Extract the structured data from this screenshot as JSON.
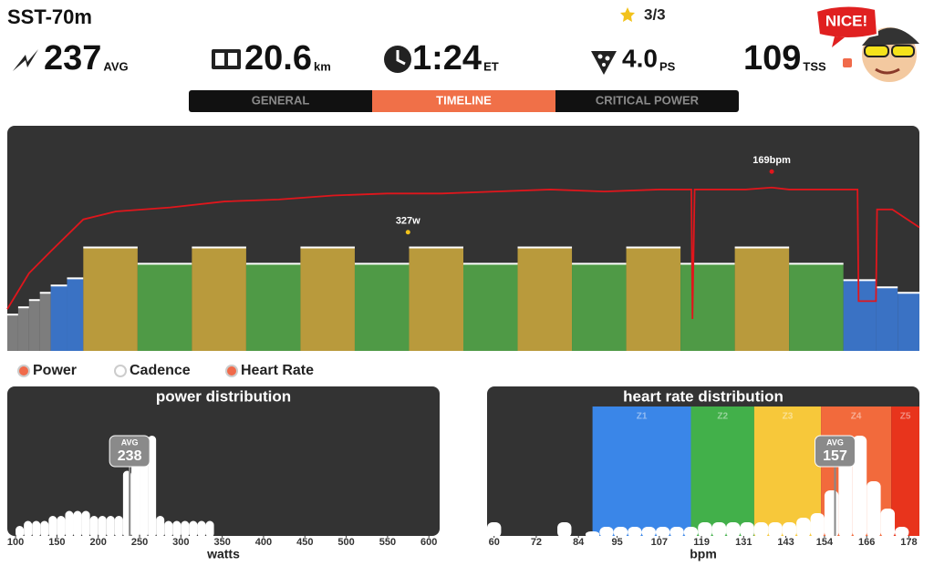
{
  "header": {
    "title": "SST-70m",
    "stars": "3/3",
    "badge": "NICE!",
    "stats": [
      {
        "value": "237",
        "unit": "AVG"
      },
      {
        "value": "20.6",
        "unit": "km"
      },
      {
        "value": "1:24",
        "unit": "ET"
      },
      {
        "value": "4.0",
        "unit": "PS"
      },
      {
        "value": "109",
        "unit": "TSS"
      }
    ]
  },
  "tabs": [
    "GENERAL",
    "TIMELINE",
    "CRITICAL POWER"
  ],
  "active_tab": 1,
  "chart_data": [
    {
      "type": "timeline",
      "xlim": [
        0,
        84
      ],
      "ylim": [
        0,
        620
      ],
      "y2lim": [
        79,
        192
      ],
      "segments": [
        {
          "start": 0,
          "end": 1,
          "power": 100,
          "color": "#7d7d7d"
        },
        {
          "start": 1,
          "end": 2,
          "power": 120,
          "color": "#7d7d7d"
        },
        {
          "start": 2,
          "end": 3,
          "power": 140,
          "color": "#7d7d7d"
        },
        {
          "start": 3,
          "end": 4,
          "power": 160,
          "color": "#7d7d7d"
        },
        {
          "start": 4,
          "end": 5.5,
          "power": 180,
          "color": "#3a72c4"
        },
        {
          "start": 5.5,
          "end": 7,
          "power": 200,
          "color": "#3a72c4"
        },
        {
          "start": 7,
          "end": 12,
          "power": 285,
          "color": "#b99a3c"
        },
        {
          "start": 12,
          "end": 17,
          "power": 240,
          "color": "#4f9a46"
        },
        {
          "start": 17,
          "end": 22,
          "power": 285,
          "color": "#b99a3c"
        },
        {
          "start": 22,
          "end": 27,
          "power": 240,
          "color": "#4f9a46"
        },
        {
          "start": 27,
          "end": 32,
          "power": 285,
          "color": "#b99a3c"
        },
        {
          "start": 32,
          "end": 37,
          "power": 240,
          "color": "#4f9a46"
        },
        {
          "start": 37,
          "end": 42,
          "power": 285,
          "color": "#b99a3c"
        },
        {
          "start": 42,
          "end": 47,
          "power": 240,
          "color": "#4f9a46"
        },
        {
          "start": 47,
          "end": 52,
          "power": 285,
          "color": "#b99a3c"
        },
        {
          "start": 52,
          "end": 57,
          "power": 240,
          "color": "#4f9a46"
        },
        {
          "start": 57,
          "end": 62,
          "power": 285,
          "color": "#b99a3c"
        },
        {
          "start": 62,
          "end": 67,
          "power": 240,
          "color": "#4f9a46"
        },
        {
          "start": 67,
          "end": 72,
          "power": 285,
          "color": "#b99a3c"
        },
        {
          "start": 72,
          "end": 77,
          "power": 240,
          "color": "#4f9a46"
        },
        {
          "start": 77,
          "end": 80,
          "power": 195,
          "color": "#3a72c4"
        },
        {
          "start": 80,
          "end": 82,
          "power": 175,
          "color": "#3a72c4"
        },
        {
          "start": 82,
          "end": 84,
          "power": 160,
          "color": "#3a72c4"
        }
      ],
      "series": [
        {
          "name": "Heart Rate",
          "color": "#e0161c",
          "axis": "y2",
          "x": [
            0,
            2,
            4,
            7,
            10,
            15,
            20,
            25,
            30,
            35,
            40,
            45,
            50,
            55,
            60,
            63,
            63.1,
            63.3,
            68,
            70.4,
            72,
            78.3,
            78.4,
            80,
            80.1,
            81.5,
            84
          ],
          "values": [
            100,
            118,
            129,
            145,
            149,
            151,
            154,
            155,
            157,
            158,
            158,
            159,
            160,
            159,
            160,
            160,
            95,
            160,
            160,
            161,
            160,
            160,
            104,
            104,
            150,
            150,
            141
          ]
        }
      ],
      "annotations": [
        {
          "text": "327w",
          "x": 36.9,
          "y": 327,
          "axis": "y"
        },
        {
          "text": "169bpm",
          "x": 70.4,
          "y": 169,
          "axis": "y2"
        }
      ],
      "legend": [
        {
          "name": "Power",
          "color": "#f06a4a"
        },
        {
          "name": "Cadence",
          "color": "#ffffff"
        },
        {
          "name": "Heart Rate",
          "color": "#f06a4a"
        }
      ]
    },
    {
      "type": "histogram",
      "title": "power distribution",
      "xlabel": "watts",
      "xlim": [
        90,
        613
      ],
      "xticks": [
        100,
        150,
        200,
        250,
        300,
        350,
        400,
        450,
        500,
        550,
        600
      ],
      "bins": [
        100,
        110,
        120,
        130,
        140,
        150,
        160,
        170,
        180,
        190,
        200,
        210,
        220,
        230,
        240,
        250,
        260,
        270,
        280,
        290,
        300,
        310,
        320,
        330,
        340
      ],
      "counts": [
        2,
        3,
        3,
        3,
        4,
        4,
        5,
        5,
        5,
        4,
        4,
        4,
        4,
        13,
        20,
        20,
        20,
        4,
        3,
        3,
        3,
        3,
        3,
        3
      ],
      "color": "#ffffff",
      "avg": {
        "label": "AVG",
        "value": 238
      }
    },
    {
      "type": "histogram",
      "title": "heart rate distribution",
      "xlabel": "bpm",
      "xlim": [
        58,
        181
      ],
      "xticks": [
        60,
        72,
        84,
        95,
        107,
        119,
        131,
        143,
        154,
        166,
        178
      ],
      "bins": [
        58,
        62,
        66,
        70,
        74,
        78,
        82,
        86,
        90,
        94,
        98,
        102,
        106,
        110,
        114,
        118,
        122,
        126,
        130,
        134,
        138,
        142,
        146,
        150,
        154,
        158,
        162,
        166,
        170,
        174,
        178
      ],
      "counts": [
        3,
        0,
        0,
        0,
        0,
        3,
        0,
        1,
        2,
        2,
        2,
        2,
        2,
        2,
        2,
        3,
        3,
        3,
        3,
        3,
        3,
        3,
        4,
        5,
        10,
        18,
        22,
        12,
        6,
        2
      ],
      "color": "#ffffff",
      "avg": {
        "label": "AVG",
        "value": 157
      },
      "zones": [
        {
          "name": "Z1",
          "start": 88,
          "end": 116,
          "color": "#3a86e8"
        },
        {
          "name": "Z2",
          "start": 116,
          "end": 134,
          "color": "#42b04a"
        },
        {
          "name": "Z3",
          "start": 134,
          "end": 153,
          "color": "#f7c83a"
        },
        {
          "name": "Z4",
          "start": 153,
          "end": 173,
          "color": "#f26a3c"
        },
        {
          "name": "Z5",
          "start": 173,
          "end": 181,
          "color": "#e8341c"
        }
      ]
    }
  ]
}
